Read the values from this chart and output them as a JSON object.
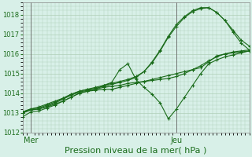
{
  "title": "Pression niveau de la mer( hPa )",
  "background_color": "#d8f0e8",
  "grid_color": "#b0cfb8",
  "line_color": "#1a6b1a",
  "marker_color": "#1a6b1a",
  "ylim": [
    1012.0,
    1018.6
  ],
  "yticks": [
    1012,
    1013,
    1014,
    1015,
    1016,
    1017,
    1018
  ],
  "xlim": [
    0,
    56
  ],
  "x_mer": 2,
  "x_jeu": 38,
  "lines": [
    {
      "x": [
        0,
        2,
        4,
        6,
        8,
        10,
        12,
        14,
        16,
        18,
        20,
        22,
        24,
        26,
        28,
        30,
        32,
        34,
        36,
        38,
        40,
        42,
        44,
        46,
        48,
        50,
        52,
        54,
        56
      ],
      "y": [
        1012.8,
        1013.05,
        1013.1,
        1013.25,
        1013.4,
        1013.6,
        1013.8,
        1014.0,
        1014.1,
        1014.15,
        1014.2,
        1014.2,
        1014.3,
        1014.4,
        1014.5,
        1014.6,
        1014.7,
        1014.8,
        1014.9,
        1015.0,
        1015.1,
        1015.2,
        1015.3,
        1015.6,
        1015.9,
        1016.0,
        1016.1,
        1016.15,
        1016.2
      ]
    },
    {
      "x": [
        0,
        2,
        4,
        6,
        8,
        10,
        12,
        14,
        16,
        18,
        20,
        22,
        24,
        26,
        28,
        30,
        32,
        34,
        36,
        38,
        40,
        42,
        44,
        46,
        48,
        50,
        52,
        54,
        56
      ],
      "y": [
        1013.0,
        1013.15,
        1013.2,
        1013.35,
        1013.5,
        1013.7,
        1013.9,
        1014.05,
        1014.15,
        1014.2,
        1014.3,
        1014.35,
        1014.4,
        1014.5,
        1014.55,
        1014.6,
        1014.65,
        1014.7,
        1014.75,
        1014.85,
        1015.0,
        1015.2,
        1015.4,
        1015.65,
        1015.85,
        1016.0,
        1016.05,
        1016.1,
        1016.15
      ]
    },
    {
      "x": [
        0,
        2,
        4,
        6,
        8,
        10,
        12,
        14,
        16,
        18,
        20,
        22,
        24,
        26,
        28,
        30,
        32,
        34,
        36,
        38,
        40,
        42,
        44,
        46,
        48,
        50,
        52,
        54,
        56
      ],
      "y": [
        1013.0,
        1013.15,
        1013.2,
        1013.3,
        1013.45,
        1013.6,
        1013.8,
        1014.0,
        1014.1,
        1014.2,
        1014.4,
        1014.55,
        1015.2,
        1015.5,
        1014.7,
        1014.3,
        1013.95,
        1013.5,
        1012.7,
        1013.2,
        1013.8,
        1014.4,
        1015.0,
        1015.5,
        1015.7,
        1015.85,
        1015.95,
        1016.05,
        1016.15
      ]
    },
    {
      "x": [
        0,
        2,
        4,
        6,
        8,
        10,
        12,
        14,
        16,
        18,
        20,
        22,
        24,
        26,
        28,
        30,
        32,
        34,
        36,
        38,
        40,
        42,
        44,
        46,
        48,
        50,
        52,
        54,
        56
      ],
      "y": [
        1013.05,
        1013.2,
        1013.25,
        1013.4,
        1013.55,
        1013.75,
        1013.95,
        1014.1,
        1014.2,
        1014.25,
        1014.35,
        1014.45,
        1014.55,
        1014.65,
        1014.8,
        1015.1,
        1015.6,
        1016.2,
        1016.9,
        1017.5,
        1017.9,
        1018.2,
        1018.35,
        1018.35,
        1018.1,
        1017.7,
        1017.2,
        1016.7,
        1016.4
      ]
    },
    {
      "x": [
        0,
        2,
        4,
        6,
        8,
        10,
        12,
        14,
        16,
        18,
        20,
        22,
        24,
        26,
        28,
        30,
        32,
        34,
        36,
        38,
        40,
        42,
        44,
        46,
        48,
        50,
        52,
        54,
        56
      ],
      "y": [
        1013.05,
        1013.2,
        1013.3,
        1013.45,
        1013.6,
        1013.75,
        1013.95,
        1014.1,
        1014.2,
        1014.3,
        1014.4,
        1014.5,
        1014.6,
        1014.7,
        1014.85,
        1015.1,
        1015.55,
        1016.15,
        1016.85,
        1017.4,
        1017.85,
        1018.15,
        1018.3,
        1018.35,
        1018.1,
        1017.7,
        1017.1,
        1016.55,
        1016.2
      ]
    }
  ],
  "x_ticks_labels": [
    "Mer",
    "Jeu"
  ],
  "x_ticks_pos": [
    2,
    38
  ],
  "vline_x": [
    2,
    38
  ],
  "ylabel_fontsize": 6,
  "xlabel_fontsize": 8
}
